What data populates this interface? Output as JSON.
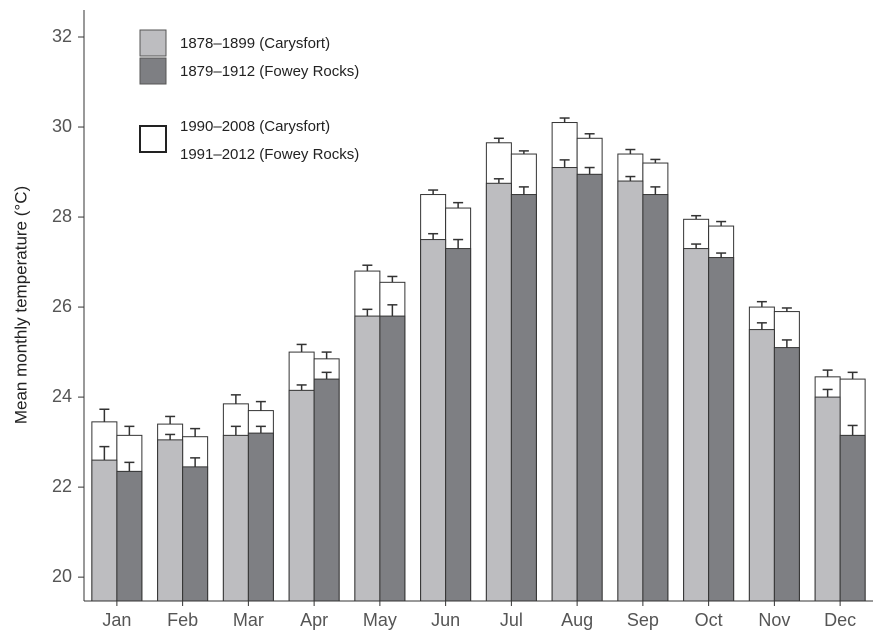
{
  "chart_data": {
    "type": "bar",
    "y_label": "Mean monthly temperature (°C)",
    "categories": [
      "Jan",
      "Feb",
      "Mar",
      "Apr",
      "May",
      "Jun",
      "Jul",
      "Aug",
      "Sep",
      "Oct",
      "Nov",
      "Dec"
    ],
    "series": [
      {
        "name": "1990–2008 (Carysfort)",
        "color": "#ffffff",
        "position": "left",
        "values": [
          23.45,
          23.4,
          23.85,
          25.0,
          26.8,
          28.5,
          29.65,
          30.1,
          29.4,
          27.95,
          26.0,
          24.45
        ],
        "errors": [
          0.28,
          0.17,
          0.2,
          0.17,
          0.13,
          0.1,
          0.1,
          0.1,
          0.1,
          0.08,
          0.12,
          0.15
        ]
      },
      {
        "name": "1991–2012 (Fowey Rocks)",
        "color": "#ffffff",
        "position": "right",
        "values": [
          23.15,
          23.12,
          23.7,
          24.85,
          26.55,
          28.2,
          29.4,
          29.75,
          29.2,
          27.8,
          25.9,
          24.4
        ],
        "errors": [
          0.2,
          0.18,
          0.2,
          0.15,
          0.13,
          0.12,
          0.07,
          0.1,
          0.08,
          0.1,
          0.08,
          0.15
        ]
      },
      {
        "name": "1878–1899 (Carysfort)",
        "color": "#bdbdc0",
        "position": "left",
        "values": [
          22.6,
          23.05,
          23.15,
          24.15,
          25.8,
          27.5,
          28.75,
          29.1,
          28.8,
          27.3,
          25.5,
          24.0
        ],
        "errors": [
          0.3,
          0.12,
          0.2,
          0.12,
          0.15,
          0.13,
          0.1,
          0.17,
          0.1,
          0.1,
          0.15,
          0.17
        ]
      },
      {
        "name": "1879–1912 (Fowey Rocks)",
        "color": "#7e7f83",
        "position": "right",
        "values": [
          22.35,
          22.45,
          23.2,
          24.4,
          25.8,
          27.3,
          28.5,
          28.95,
          28.5,
          27.1,
          25.1,
          23.15
        ],
        "errors": [
          0.2,
          0.2,
          0.15,
          0.15,
          0.25,
          0.2,
          0.17,
          0.15,
          0.17,
          0.1,
          0.17,
          0.22
        ]
      }
    ],
    "ylim": [
      19.47,
      32.6
    ],
    "yticks": [
      20,
      22,
      24,
      26,
      28,
      30,
      32
    ]
  }
}
